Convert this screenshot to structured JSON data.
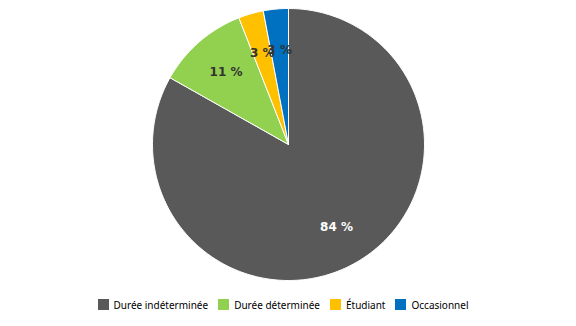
{
  "chart_data": {
    "type": "pie",
    "categories": [
      "Durée indéterminée",
      "Durée déterminée",
      "Étudiant",
      "Occasionnel"
    ],
    "values": [
      84,
      11,
      3,
      3
    ],
    "value_labels": [
      "84 %",
      "11 %",
      "3 %",
      "3 %"
    ],
    "colors": [
      "#595959",
      "#92d050",
      "#ffc000",
      "#0070c0"
    ],
    "data_labels": true,
    "legend": "bottom"
  }
}
